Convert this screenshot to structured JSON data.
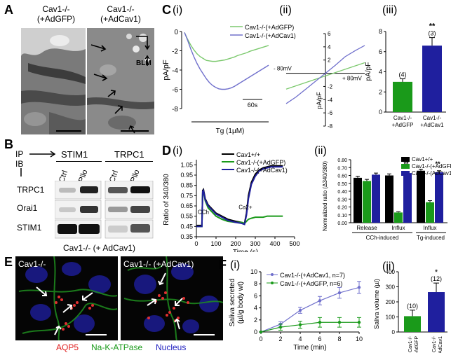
{
  "panels": {
    "A": {
      "letter": "A",
      "left_title": "Cav1-/-\n(+AdGFP)",
      "right_title": "Cav1-/-\n(+AdCav1)",
      "blm_label": "BLM"
    },
    "B": {
      "letter": "B",
      "ip_label": "IP",
      "ib_label": "IB",
      "col_groups": [
        "STIM1",
        "TRPC1"
      ],
      "lanes": [
        "Ctrl",
        "Pilo",
        "Ctrl",
        "Pilo"
      ],
      "rows": [
        "TRPC1",
        "Orai1",
        "STIM1"
      ],
      "caption": "Cav1-/- (+ AdCav1)"
    },
    "C": {
      "letter": "C",
      "sub_i": "(i)",
      "sub_ii": "(ii)",
      "sub_iii": "(iii)",
      "tg_label": "Tg (1µM)",
      "scale_label": "60s",
      "iv_left_label": "- 80mV",
      "iv_right_label": "+ 80mV"
    },
    "D": {
      "letter": "D",
      "sub_i": "(i)",
      "sub_ii": "(ii)",
      "cch_label": "CCh",
      "ca_label": "Ca2+",
      "group_labels": [
        "Release",
        "Influx",
        "Influx"
      ],
      "group_sublabels": [
        "CCh-induced",
        "Tg-induced"
      ]
    },
    "E": {
      "letter": "E",
      "left_title": "Cav1-/-",
      "right_title": "Cav1-/- (+AdCav1)",
      "legend_aqp5": "AQP5",
      "legend_nak": "Na-K-ATPase",
      "legend_nucleus": "Nucleus"
    },
    "F": {
      "letter": "F",
      "sub_i": "(i)",
      "sub_ii": "(ii)"
    }
  },
  "colors": {
    "green": "#1a9a1a",
    "navy": "#1f1f9e",
    "black": "#000000",
    "light_green": "#7cc96e",
    "purple": "#7070cc",
    "aqp5": "#e02020",
    "nak": "#20a020",
    "nucleus": "#2020c0"
  },
  "chart_data": [
    {
      "id": "C_i",
      "type": "line",
      "ylabel": "pA/pF",
      "ylim": [
        -8,
        0
      ],
      "yticks": [
        "0",
        "-2",
        "-4",
        "-6",
        "-8"
      ],
      "series": [
        {
          "name": "Cav1-/-(+AdGFP)",
          "color": "#7cc96e",
          "x": [
            0,
            10,
            20,
            30,
            40,
            50,
            60,
            70,
            80,
            90,
            100,
            110,
            120,
            130,
            140,
            150,
            160,
            170,
            180,
            190,
            200,
            210,
            220,
            230,
            240,
            250,
            260,
            270
          ],
          "values": [
            -0.1,
            -0.8,
            -1.4,
            -1.9,
            -2.3,
            -2.6,
            -2.8,
            -3.0,
            -3.05,
            -3.1,
            -3.1,
            -3.05,
            -3.0,
            -2.95,
            -2.85,
            -2.75,
            -2.65,
            -2.5,
            -2.4,
            -2.3,
            -2.2,
            -2.05,
            -1.95,
            -1.85,
            -1.75,
            -1.65,
            -1.55,
            -1.45
          ]
        },
        {
          "name": "Cav1-/-(+AdCav1)",
          "color": "#7070cc",
          "x": [
            0,
            10,
            20,
            30,
            40,
            50,
            60,
            70,
            80,
            90,
            100,
            110,
            120,
            130,
            140,
            150,
            160,
            170,
            180,
            190,
            200,
            210,
            220,
            230,
            240,
            250,
            260,
            270
          ],
          "values": [
            -0.1,
            -0.9,
            -1.8,
            -2.6,
            -3.3,
            -3.9,
            -4.4,
            -4.9,
            -5.3,
            -5.6,
            -5.8,
            -5.95,
            -6.0,
            -6.0,
            -5.95,
            -5.85,
            -5.7,
            -5.5,
            -5.3,
            -5.1,
            -4.9,
            -4.7,
            -4.5,
            -4.3,
            -4.1,
            -3.9,
            -3.7,
            -3.5
          ]
        }
      ]
    },
    {
      "id": "C_ii",
      "type": "line",
      "ylabel": "pA/pF",
      "yticks": [
        "6",
        "4",
        "2",
        "-2",
        "-4",
        "-6",
        "-8"
      ],
      "ylim": [
        -8,
        6
      ],
      "xlim": [
        -80,
        80
      ],
      "series": [
        {
          "name": "Cav1-/-(+AdGFP)",
          "color": "#7cc96e",
          "x": [
            -80,
            80
          ],
          "values": [
            -2.4,
            1.6
          ]
        },
        {
          "name": "Cav1-/-(+AdCav1)",
          "color": "#7070cc",
          "x": [
            -80,
            -60,
            -40,
            -20,
            0,
            20,
            40,
            60,
            80
          ],
          "values": [
            -4.6,
            -3.6,
            -2.4,
            -1.2,
            0,
            1.2,
            2.5,
            3.4,
            4.2
          ]
        }
      ]
    },
    {
      "id": "C_iii",
      "type": "bar",
      "ylabel": "pA/pF",
      "ylim": [
        0,
        8
      ],
      "yticks": [
        "0",
        "2",
        "4",
        "6",
        "8"
      ],
      "categories": [
        "Cav1-/-\n+AdGFP",
        "Cav1-/-\n+AdCav1"
      ],
      "values": [
        3.0,
        6.6
      ],
      "errors": [
        0.3,
        0.8
      ],
      "n_labels": [
        "(4)",
        "(3)"
      ],
      "sig": [
        "",
        "**"
      ],
      "bar_colors": [
        "#1a9a1a",
        "#1f1f9e"
      ]
    },
    {
      "id": "D_i",
      "type": "line",
      "xlabel": "Time (s)",
      "ylabel": "Ratio of 340/380",
      "xlim": [
        0,
        500
      ],
      "ylim": [
        0.35,
        1.1
      ],
      "xticks": [
        "0",
        "100",
        "200",
        "300",
        "400",
        "500"
      ],
      "yticks": [
        "0.35",
        "0.45",
        "0.55",
        "0.65",
        "0.75",
        "0.85",
        "0.95",
        "1.05"
      ],
      "series": [
        {
          "name": "Cav1+/+",
          "color": "#000000",
          "x": [
            0,
            20,
            28,
            32,
            36,
            45,
            60,
            80,
            100,
            130,
            160,
            200,
            230,
            245,
            255,
            265,
            280,
            300,
            320,
            340,
            360,
            380,
            400,
            420,
            440
          ],
          "values": [
            0.46,
            0.46,
            0.46,
            0.8,
            0.81,
            0.72,
            0.66,
            0.62,
            0.58,
            0.55,
            0.52,
            0.5,
            0.49,
            0.48,
            0.58,
            0.75,
            0.88,
            0.96,
            1.0,
            1.02,
            1.03,
            1.04,
            1.04,
            1.04,
            1.04
          ]
        },
        {
          "name": "Cav1-/-(+AdGFP)",
          "color": "#1a9a1a",
          "x": [
            0,
            20,
            28,
            32,
            36,
            45,
            60,
            80,
            100,
            130,
            160,
            200,
            230,
            245,
            255,
            265,
            280,
            300,
            320,
            340,
            360,
            380,
            400,
            420,
            440
          ],
          "values": [
            0.45,
            0.45,
            0.45,
            0.78,
            0.79,
            0.7,
            0.63,
            0.59,
            0.55,
            0.52,
            0.5,
            0.49,
            0.49,
            0.48,
            0.5,
            0.52,
            0.53,
            0.54,
            0.54,
            0.54,
            0.55,
            0.55,
            0.55,
            0.55,
            0.55
          ]
        },
        {
          "name": "Cav1-/-(+AdCav1)",
          "color": "#1f1f9e",
          "x": [
            0,
            20,
            28,
            32,
            36,
            45,
            60,
            80,
            100,
            130,
            160,
            200,
            230,
            245,
            255,
            265,
            280,
            300,
            320,
            340,
            360,
            380,
            400,
            420,
            440
          ],
          "values": [
            0.45,
            0.45,
            0.45,
            0.79,
            0.8,
            0.71,
            0.65,
            0.61,
            0.57,
            0.54,
            0.51,
            0.49,
            0.48,
            0.47,
            0.56,
            0.72,
            0.86,
            0.94,
            0.99,
            1.01,
            1.02,
            1.03,
            1.03,
            1.03,
            1.03
          ]
        }
      ]
    },
    {
      "id": "D_ii",
      "type": "bar",
      "ylabel": "Normalized ratio (Δ340/380)",
      "ylim": [
        0,
        0.8
      ],
      "yticks": [
        "0.00",
        "0.10",
        "0.20",
        "0.30",
        "0.40",
        "0.50",
        "0.60",
        "0.70",
        "0.80"
      ],
      "categories": [
        "Release",
        "Influx",
        "Influx"
      ],
      "series": [
        {
          "name": "Cav1+/+",
          "color": "#000000",
          "values": [
            0.57,
            0.6,
            0.66
          ],
          "errors": [
            0.02,
            0.02,
            0.02
          ]
        },
        {
          "name": "Cav1-/-(+AdGFP)",
          "color": "#1a9a1a",
          "values": [
            0.53,
            0.13,
            0.26
          ],
          "errors": [
            0.02,
            0.01,
            0.02
          ]
        },
        {
          "name": "Cav1-/-(AdCav1)",
          "color": "#1f1f9e",
          "values": [
            0.61,
            0.63,
            0.64
          ],
          "errors": [
            0.02,
            0.02,
            0.02
          ]
        }
      ],
      "sig": [
        "",
        "**",
        "**"
      ]
    },
    {
      "id": "F_i",
      "type": "line",
      "xlabel": "Time (min)",
      "ylabel": "Saliva secreted\n(µl/g body wt)",
      "xlim": [
        0,
        10
      ],
      "ylim": [
        0,
        10
      ],
      "xticks": [
        "0",
        "2",
        "4",
        "6",
        "8",
        "10"
      ],
      "yticks": [
        "0",
        "2",
        "4",
        "6",
        "8",
        "10"
      ],
      "series": [
        {
          "name": "Cav1-/-(+AdCav1, n=7)",
          "color": "#7070cc",
          "x": [
            0,
            2,
            4,
            6,
            8,
            10
          ],
          "values": [
            0,
            1.3,
            3.6,
            5.2,
            6.5,
            7.4
          ],
          "errors": [
            0,
            0.4,
            0.5,
            0.7,
            0.9,
            1.0
          ]
        },
        {
          "name": "Cav1-/-(+AdGFP, n=6)",
          "color": "#1a9a1a",
          "x": [
            0,
            2,
            4,
            6,
            8,
            10
          ],
          "values": [
            0,
            0.8,
            1.2,
            1.6,
            1.6,
            1.6
          ],
          "errors": [
            0,
            0.5,
            0.6,
            0.8,
            0.8,
            0.8
          ]
        }
      ]
    },
    {
      "id": "F_ii",
      "type": "bar",
      "ylabel": "Saliva volume (µl)",
      "ylim": [
        0,
        400
      ],
      "yticks": [
        "0",
        "100",
        "200",
        "300",
        "400"
      ],
      "categories": [
        "Cav1-/-\n+AdGFP",
        "Cav1-/-\n+AdCav1"
      ],
      "values": [
        105,
        265
      ],
      "errors": [
        40,
        60
      ],
      "n_labels": [
        "(10)",
        "(12)"
      ],
      "sig": [
        "",
        "*"
      ],
      "bar_colors": [
        "#1a9a1a",
        "#1f1f9e"
      ]
    }
  ]
}
